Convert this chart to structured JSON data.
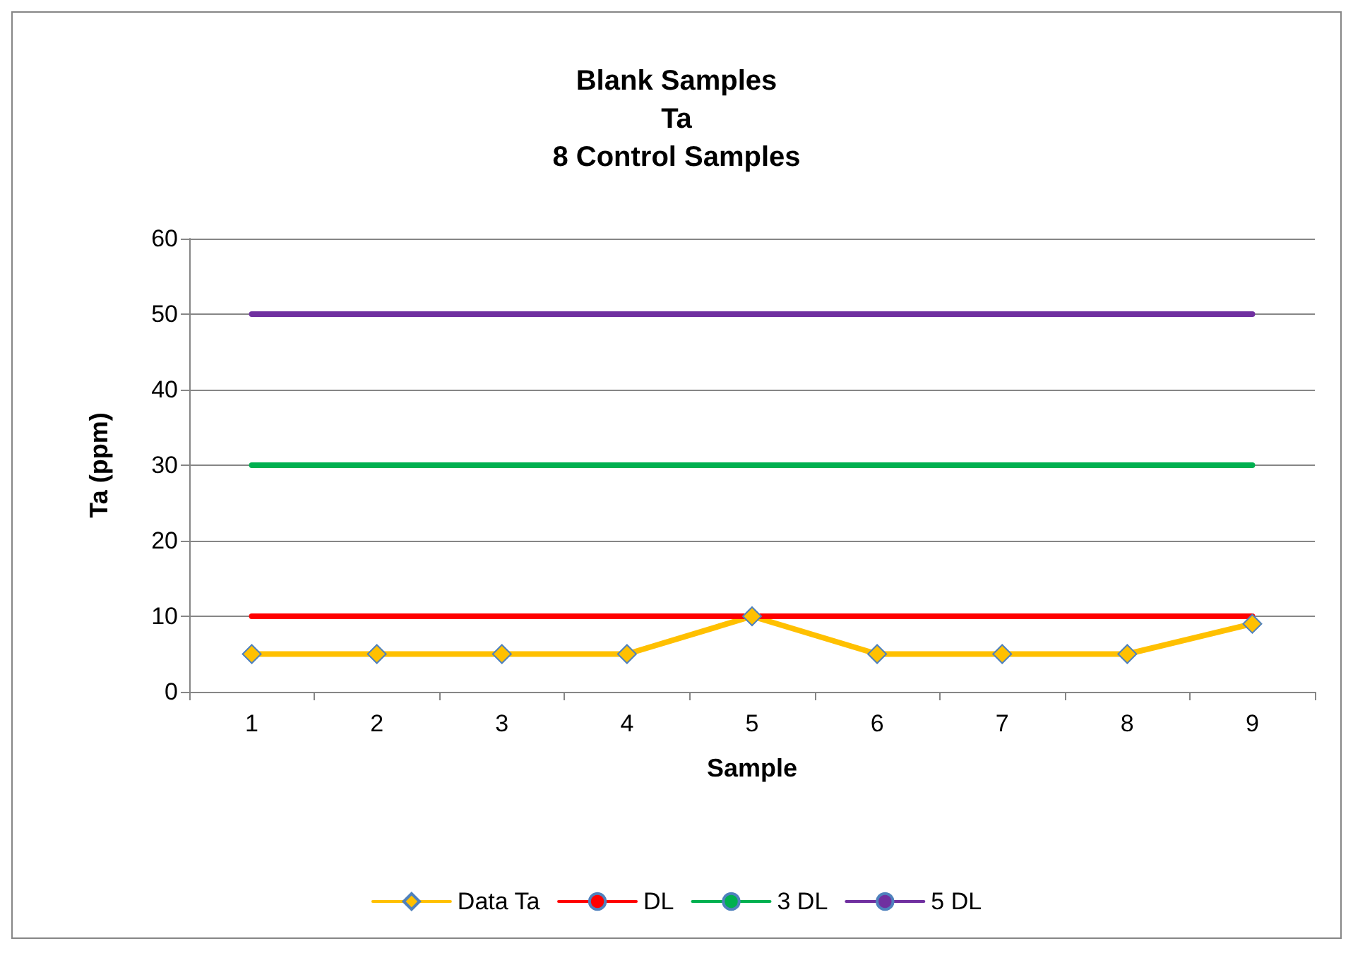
{
  "chart_data": {
    "type": "line",
    "title": "Blank Samples\nTa\n8 Control Samples",
    "xlabel": "Sample",
    "ylabel": "Ta (ppm)",
    "categories": [
      "1",
      "2",
      "3",
      "4",
      "5",
      "6",
      "7",
      "8",
      "9"
    ],
    "series": [
      {
        "name": "Data Ta",
        "color": "#ffc000",
        "marker": "diamond",
        "values": [
          5,
          5,
          5,
          5,
          10,
          5,
          5,
          5,
          9
        ]
      },
      {
        "name": "DL",
        "color": "#ff0000",
        "marker": "none",
        "values": [
          10,
          10,
          10,
          10,
          10,
          10,
          10,
          10,
          10
        ]
      },
      {
        "name": "3 DL",
        "color": "#00b050",
        "marker": "none",
        "values": [
          30,
          30,
          30,
          30,
          30,
          30,
          30,
          30,
          30
        ]
      },
      {
        "name": "5 DL",
        "color": "#7030a0",
        "marker": "none",
        "values": [
          50,
          50,
          50,
          50,
          50,
          50,
          50,
          50,
          50
        ]
      }
    ],
    "ylim": [
      0,
      60
    ],
    "yticks": [
      0,
      10,
      20,
      30,
      40,
      50,
      60
    ],
    "grid": "y",
    "legend": "bottom",
    "line_style": "solid"
  }
}
